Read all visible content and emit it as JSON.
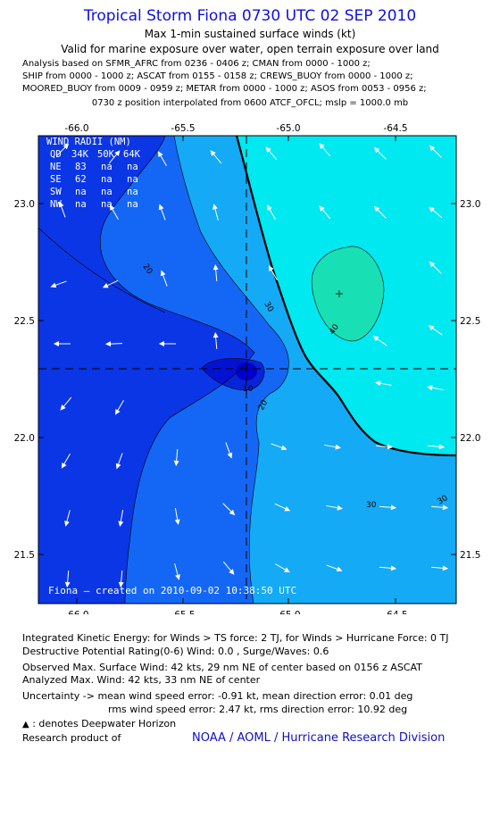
{
  "header": {
    "title": "Tropical Storm Fiona 0730 UTC 02 SEP 2010",
    "subtitle": "Max 1-min sustained surface winds (kt)",
    "validity": "Valid for marine exposure over water, open terrain exposure over land",
    "analysis_lines": [
      "Analysis based on SFMR_AFRC from 0236 - 0406 z; CMAN from 0000 - 1000 z;",
      "SHIP from 0000 - 1000 z; ASCAT from 0155 - 0158 z; CREWS_BUOY from 0000 - 1000 z;",
      "MOORED_BUOY from 0009 - 0959 z; METAR from 0000 - 1000 z; ASOS from 0053 - 0956 z;"
    ],
    "position_note": "0730 z position interpolated from 0600 ATCF_OFCL; mslp = 1000.0 mb"
  },
  "map": {
    "lon_ticks": [
      "-66.0",
      "-65.5",
      "-65.0",
      "-64.5"
    ],
    "lat_ticks": [
      "23.0",
      "22.5",
      "22.0",
      "21.5"
    ],
    "center": {
      "lon": -65.15,
      "lat": 22.29
    },
    "max_wind_marker": {
      "lon": -64.72,
      "lat": 22.62
    },
    "contour_labels": [
      "10",
      "20",
      "20",
      "30",
      "30",
      "30",
      "40"
    ],
    "created_label": "Fiona – created on 2010-09-02 10:38:50 UTC",
    "wind_radii": {
      "title": "WIND RADII (NM)",
      "header": [
        "QD",
        "34K",
        "50K",
        "64K"
      ],
      "rows": [
        [
          "NE",
          "83",
          "na",
          "na"
        ],
        [
          "SE",
          "62",
          "na",
          "na"
        ],
        [
          "SW",
          "na",
          "na",
          "na"
        ],
        [
          "NW",
          "na",
          "na",
          "na"
        ]
      ]
    },
    "colors": {
      "band_lt10": "#0000c8",
      "band_10_20": "#0a36e6",
      "band_20_30": "#1467f5",
      "band_30_40": "#14aaf5",
      "band_40_50": "#00e8f0",
      "band_gt40": "#18e0b4",
      "ts_contour": "#000000"
    }
  },
  "footer": {
    "ike": "Integrated Kinetic Energy:  for Winds > TS force: 2 TJ,  for Winds > Hurricane Force: 0 TJ",
    "dpr": "Destructive Potential Rating(0-6)   Wind: 0.0 , Surge/Waves: 0.6",
    "obs_max": "Observed Max. Surface Wind: 42 kts, 29 nm NE of center based on 0156 z ASCAT",
    "analyzed_max": "Analyzed Max. Wind: 42 kts, 33 nm NE of center",
    "uncertainty_1": "Uncertainty -> mean wind speed error:  -0.91 kt,   mean direction error: 0.01 deg",
    "uncertainty_2": "rms wind speed error: 2.47 kt,   rms direction error: 10.92 deg",
    "deepwater": ": denotes Deepwater Horizon",
    "research": "Research product of",
    "credit": "NOAA / AOML / Hurricane Research Division"
  }
}
